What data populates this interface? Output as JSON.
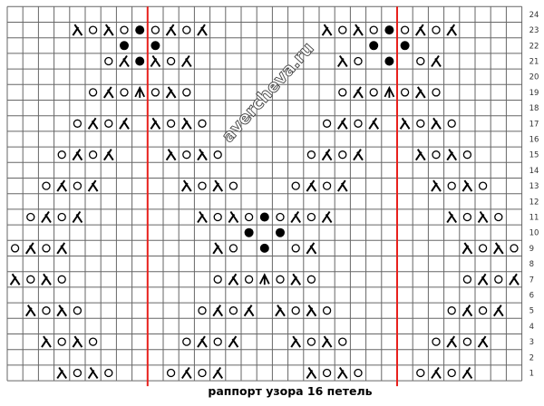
{
  "chart": {
    "rows": 24,
    "columns": 33,
    "repeat_boundaries_after_columns": [
      9,
      25
    ],
    "row_labels": [
      "1",
      "2",
      "3",
      "4",
      "5",
      "6",
      "7",
      "8",
      "9",
      "10",
      "11",
      "12",
      "13",
      "14",
      "15",
      "16",
      "17",
      "18",
      "19",
      "20",
      "21",
      "22",
      "23",
      "24"
    ],
    "symbol_legend": {
      "o": "yarn-over",
      "l": "left-leaning-decrease",
      "k": "right-leaning-decrease",
      "b": "bobble-dot",
      "c": "central-double-decrease"
    },
    "pattern": {
      "23": [
        [
          5,
          "l"
        ],
        [
          6,
          "o"
        ],
        [
          7,
          "l"
        ],
        [
          8,
          "o"
        ],
        [
          9,
          "b"
        ],
        [
          10,
          "o"
        ],
        [
          11,
          "k"
        ],
        [
          12,
          "o"
        ],
        [
          13,
          "k"
        ],
        [
          21,
          "l"
        ],
        [
          22,
          "o"
        ],
        [
          23,
          "l"
        ],
        [
          24,
          "o"
        ],
        [
          25,
          "b"
        ],
        [
          26,
          "o"
        ],
        [
          27,
          "k"
        ],
        [
          28,
          "o"
        ],
        [
          29,
          "k"
        ]
      ],
      "22": [
        [
          8,
          "b"
        ],
        [
          10,
          "b"
        ],
        [
          24,
          "b"
        ],
        [
          26,
          "b"
        ]
      ],
      "21": [
        [
          7,
          "o"
        ],
        [
          8,
          "k"
        ],
        [
          9,
          "b"
        ],
        [
          10,
          "l"
        ],
        [
          11,
          "o"
        ],
        [
          12,
          "k"
        ],
        [
          22,
          "l"
        ],
        [
          23,
          "o"
        ],
        [
          25,
          "b"
        ],
        [
          27,
          "o"
        ],
        [
          28,
          "k"
        ]
      ],
      "19": [
        [
          6,
          "o"
        ],
        [
          7,
          "k"
        ],
        [
          8,
          "o"
        ],
        [
          9,
          "c"
        ],
        [
          10,
          "o"
        ],
        [
          11,
          "l"
        ],
        [
          12,
          "o"
        ],
        [
          22,
          "o"
        ],
        [
          23,
          "k"
        ],
        [
          24,
          "o"
        ],
        [
          25,
          "c"
        ],
        [
          26,
          "o"
        ],
        [
          27,
          "l"
        ],
        [
          28,
          "o"
        ]
      ],
      "17": [
        [
          5,
          "o"
        ],
        [
          6,
          "k"
        ],
        [
          7,
          "o"
        ],
        [
          8,
          "k"
        ],
        [
          10,
          "l"
        ],
        [
          11,
          "o"
        ],
        [
          12,
          "l"
        ],
        [
          13,
          "o"
        ],
        [
          21,
          "o"
        ],
        [
          22,
          "k"
        ],
        [
          23,
          "o"
        ],
        [
          24,
          "k"
        ],
        [
          26,
          "l"
        ],
        [
          27,
          "o"
        ],
        [
          28,
          "l"
        ],
        [
          29,
          "o"
        ]
      ],
      "15": [
        [
          4,
          "o"
        ],
        [
          5,
          "k"
        ],
        [
          6,
          "o"
        ],
        [
          7,
          "k"
        ],
        [
          11,
          "l"
        ],
        [
          12,
          "o"
        ],
        [
          13,
          "l"
        ],
        [
          14,
          "o"
        ],
        [
          20,
          "o"
        ],
        [
          21,
          "k"
        ],
        [
          22,
          "o"
        ],
        [
          23,
          "k"
        ],
        [
          27,
          "l"
        ],
        [
          28,
          "o"
        ],
        [
          29,
          "l"
        ],
        [
          30,
          "o"
        ]
      ],
      "13": [
        [
          3,
          "o"
        ],
        [
          4,
          "k"
        ],
        [
          5,
          "o"
        ],
        [
          6,
          "k"
        ],
        [
          12,
          "l"
        ],
        [
          13,
          "o"
        ],
        [
          14,
          "l"
        ],
        [
          15,
          "o"
        ],
        [
          19,
          "o"
        ],
        [
          20,
          "k"
        ],
        [
          21,
          "o"
        ],
        [
          22,
          "k"
        ],
        [
          28,
          "l"
        ],
        [
          29,
          "o"
        ],
        [
          30,
          "l"
        ],
        [
          31,
          "o"
        ]
      ],
      "11": [
        [
          2,
          "o"
        ],
        [
          3,
          "k"
        ],
        [
          4,
          "o"
        ],
        [
          5,
          "k"
        ],
        [
          13,
          "l"
        ],
        [
          14,
          "o"
        ],
        [
          15,
          "l"
        ],
        [
          16,
          "o"
        ],
        [
          17,
          "b"
        ],
        [
          18,
          "o"
        ],
        [
          19,
          "k"
        ],
        [
          20,
          "o"
        ],
        [
          21,
          "k"
        ],
        [
          29,
          "l"
        ],
        [
          30,
          "o"
        ],
        [
          31,
          "l"
        ],
        [
          32,
          "o"
        ]
      ],
      "10": [
        [
          16,
          "b"
        ],
        [
          18,
          "b"
        ]
      ],
      "9": [
        [
          1,
          "o"
        ],
        [
          2,
          "k"
        ],
        [
          3,
          "o"
        ],
        [
          4,
          "k"
        ],
        [
          14,
          "l"
        ],
        [
          15,
          "o"
        ],
        [
          17,
          "b"
        ],
        [
          19,
          "o"
        ],
        [
          20,
          "k"
        ],
        [
          30,
          "l"
        ],
        [
          31,
          "o"
        ],
        [
          32,
          "l"
        ],
        [
          33,
          "o"
        ]
      ],
      "7": [
        [
          1,
          "l"
        ],
        [
          2,
          "o"
        ],
        [
          3,
          "l"
        ],
        [
          4,
          "o"
        ],
        [
          14,
          "o"
        ],
        [
          15,
          "k"
        ],
        [
          16,
          "o"
        ],
        [
          17,
          "c"
        ],
        [
          18,
          "o"
        ],
        [
          19,
          "l"
        ],
        [
          20,
          "o"
        ],
        [
          30,
          "o"
        ],
        [
          31,
          "k"
        ],
        [
          32,
          "o"
        ],
        [
          33,
          "k"
        ]
      ],
      "5": [
        [
          2,
          "l"
        ],
        [
          3,
          "o"
        ],
        [
          4,
          "l"
        ],
        [
          5,
          "o"
        ],
        [
          13,
          "o"
        ],
        [
          14,
          "k"
        ],
        [
          15,
          "o"
        ],
        [
          16,
          "k"
        ],
        [
          18,
          "l"
        ],
        [
          19,
          "o"
        ],
        [
          20,
          "l"
        ],
        [
          21,
          "o"
        ],
        [
          29,
          "o"
        ],
        [
          30,
          "k"
        ],
        [
          31,
          "o"
        ],
        [
          32,
          "k"
        ]
      ],
      "3": [
        [
          3,
          "l"
        ],
        [
          4,
          "o"
        ],
        [
          5,
          "l"
        ],
        [
          6,
          "o"
        ],
        [
          12,
          "o"
        ],
        [
          13,
          "k"
        ],
        [
          14,
          "o"
        ],
        [
          15,
          "k"
        ],
        [
          19,
          "l"
        ],
        [
          20,
          "o"
        ],
        [
          21,
          "l"
        ],
        [
          22,
          "o"
        ],
        [
          28,
          "o"
        ],
        [
          29,
          "k"
        ],
        [
          30,
          "o"
        ],
        [
          31,
          "k"
        ]
      ],
      "1": [
        [
          4,
          "l"
        ],
        [
          5,
          "o"
        ],
        [
          6,
          "l"
        ],
        [
          7,
          "o"
        ],
        [
          11,
          "o"
        ],
        [
          12,
          "k"
        ],
        [
          13,
          "o"
        ],
        [
          14,
          "k"
        ],
        [
          20,
          "l"
        ],
        [
          21,
          "o"
        ],
        [
          22,
          "l"
        ],
        [
          23,
          "o"
        ],
        [
          27,
          "o"
        ],
        [
          28,
          "k"
        ],
        [
          29,
          "o"
        ],
        [
          30,
          "k"
        ]
      ]
    },
    "colors": {
      "grid": "#666666",
      "repeat_line": "#e8201c",
      "symbol": "#000000"
    }
  },
  "watermark": "avercheva.ru",
  "caption": "раппорт узора 16 петель"
}
